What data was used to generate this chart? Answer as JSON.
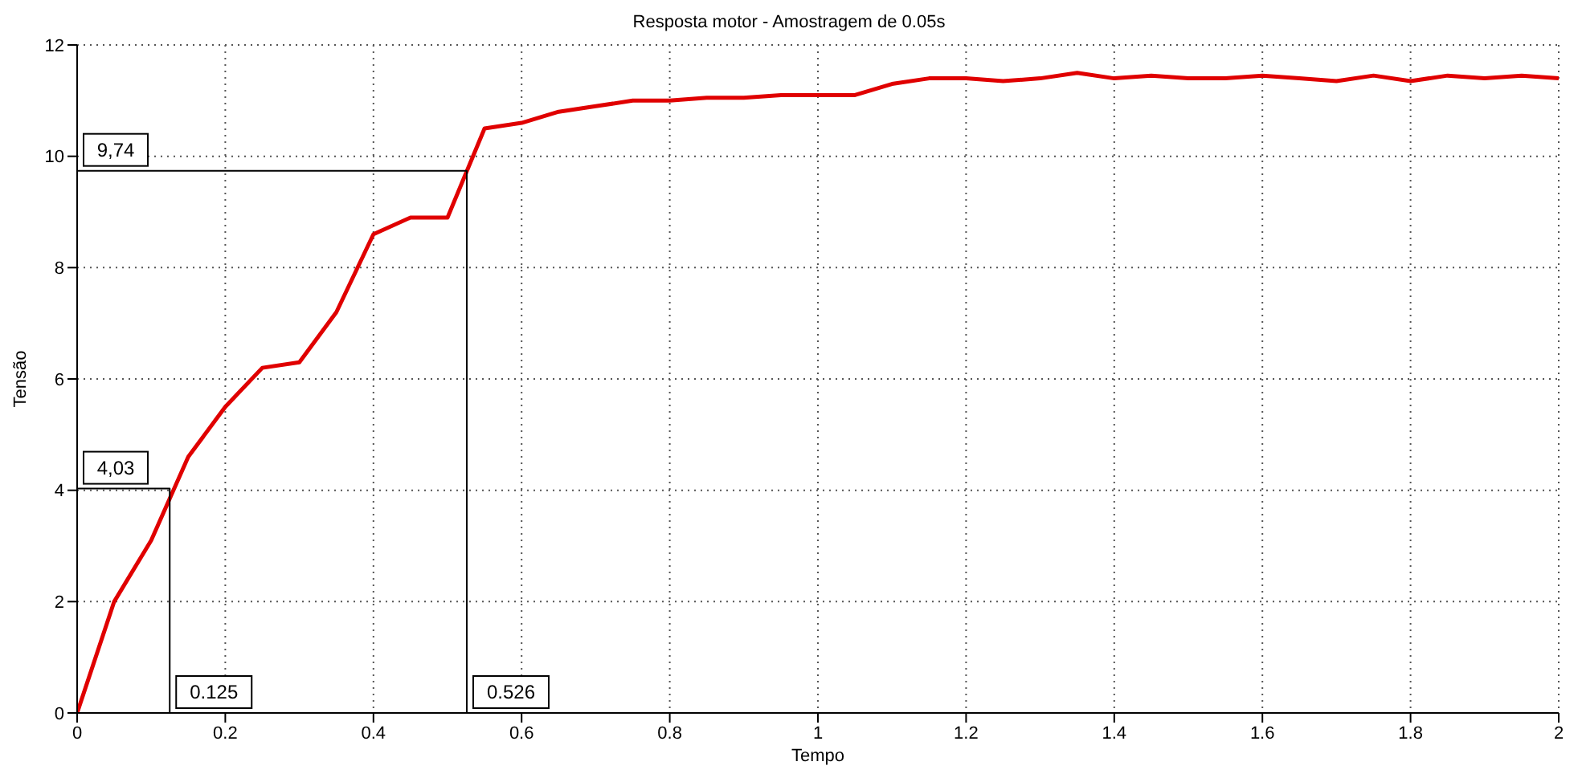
{
  "chart_data": {
    "type": "line",
    "title": "Resposta motor - Amostragem de 0.05s",
    "xlabel": "Tempo",
    "ylabel": "Tensão",
    "x": [
      0,
      0.05,
      0.1,
      0.15,
      0.2,
      0.25,
      0.3,
      0.35,
      0.4,
      0.45,
      0.5,
      0.55,
      0.6,
      0.65,
      0.7,
      0.75,
      0.8,
      0.85,
      0.9,
      0.95,
      1,
      1.05,
      1.1,
      1.15,
      1.2,
      1.25,
      1.3,
      1.35,
      1.4,
      1.45,
      1.5,
      1.55,
      1.6,
      1.65,
      1.7,
      1.75,
      1.8,
      1.85,
      1.9,
      1.95,
      2
    ],
    "series": [
      {
        "color": "#e00000",
        "values": [
          0,
          2.0,
          3.1,
          4.6,
          5.5,
          6.2,
          6.3,
          7.2,
          8.6,
          8.9,
          8.9,
          10.5,
          10.6,
          10.8,
          10.9,
          11.0,
          11.0,
          11.05,
          11.05,
          11.1,
          11.1,
          11.1,
          11.3,
          11.4,
          11.4,
          11.35,
          11.4,
          11.5,
          11.4,
          11.45,
          11.4,
          11.4,
          11.45,
          11.4,
          11.35,
          11.45,
          11.35,
          11.45,
          11.4,
          11.45,
          11.4
        ]
      },
      {
        "color": "#000000",
        "x": [
          0,
          0.125,
          0.125
        ],
        "values": [
          4.03,
          4.03,
          0
        ]
      },
      {
        "color": "#000000",
        "x": [
          0,
          0.526,
          0.526
        ],
        "values": [
          9.74,
          9.74,
          0
        ]
      }
    ],
    "xlim": [
      0,
      2
    ],
    "xticks": [
      0,
      0.2,
      0.4,
      0.6,
      0.8,
      1,
      1.2,
      1.4,
      1.6,
      1.8,
      2
    ],
    "ylim": [
      0,
      12
    ],
    "yticks": [
      0,
      2,
      4,
      6,
      8,
      10,
      12
    ],
    "grid": true,
    "marker": "none",
    "line_style": "solid",
    "annotations": [
      {
        "text": "4,03",
        "x": 0,
        "y": 4.03
      },
      {
        "text": "0.125",
        "x": 0.125,
        "y": 0
      },
      {
        "text": "9,74",
        "x": 0,
        "y": 9.74
      },
      {
        "text": "0.526",
        "x": 0.526,
        "y": 0
      }
    ]
  }
}
